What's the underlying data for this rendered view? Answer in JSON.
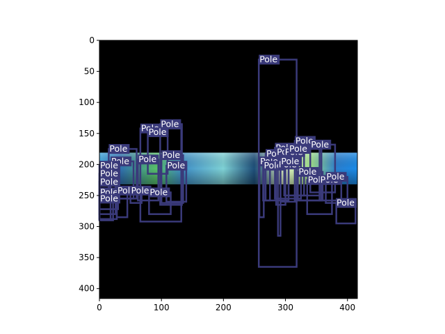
{
  "figure": {
    "label_text": "Pole",
    "colors": {
      "figure_background": "#ffffff",
      "image_background": "#000000",
      "box_stroke": "#3a3a7a",
      "label_background": "#3a3a7a",
      "label_text": "#ffffff",
      "axis": "#000000"
    }
  },
  "chart_data": {
    "type": "image_with_bounding_boxes",
    "xlim": [
      0,
      416
    ],
    "ylim": [
      416,
      0
    ],
    "xticks": [
      0,
      100,
      200,
      300,
      400
    ],
    "yticks": [
      0,
      50,
      100,
      150,
      200,
      250,
      300,
      350,
      400
    ],
    "xtick_labels": [
      "0",
      "100",
      "200",
      "300",
      "400"
    ],
    "ytick_labels": [
      "0",
      "50",
      "100",
      "150",
      "200",
      "250",
      "300",
      "350",
      "400"
    ],
    "image_strip_y_range": [
      181,
      232
    ],
    "boxes": [
      {
        "label": "Pole",
        "x0": 257,
        "y0": 31,
        "x1": 318,
        "y1": 365
      },
      {
        "label": "Pole",
        "x0": 66,
        "y0": 142,
        "x1": 132,
        "y1": 292
      },
      {
        "label": "Pole",
        "x0": 98,
        "y0": 135,
        "x1": 133,
        "y1": 265
      },
      {
        "label": "Pole",
        "x0": 78,
        "y0": 148,
        "x1": 110,
        "y1": 215
      },
      {
        "label": "Pole",
        "x0": 15,
        "y0": 175,
        "x1": 60,
        "y1": 255
      },
      {
        "label": "Pole",
        "x0": 18,
        "y0": 195,
        "x1": 55,
        "y1": 255
      },
      {
        "label": "Pole",
        "x0": 62,
        "y0": 192,
        "x1": 95,
        "y1": 258
      },
      {
        "label": "Pole",
        "x0": 100,
        "y0": 185,
        "x1": 135,
        "y1": 262
      },
      {
        "label": "Pole",
        "x0": 108,
        "y0": 202,
        "x1": 140,
        "y1": 260
      },
      {
        "label": "Pole",
        "x0": 0,
        "y0": 202,
        "x1": 30,
        "y1": 272
      },
      {
        "label": "Pole",
        "x0": 0,
        "y0": 215,
        "x1": 26,
        "y1": 280
      },
      {
        "label": "Pole",
        "x0": 0,
        "y0": 228,
        "x1": 28,
        "y1": 288
      },
      {
        "label": "Pole",
        "x0": 0,
        "y0": 245,
        "x1": 18,
        "y1": 288
      },
      {
        "label": "Pole",
        "x0": 0,
        "y0": 255,
        "x1": 22,
        "y1": 290
      },
      {
        "label": "Pole",
        "x0": 28,
        "y0": 242,
        "x1": 45,
        "y1": 285
      },
      {
        "label": "Pole",
        "x0": 50,
        "y0": 242,
        "x1": 68,
        "y1": 262
      },
      {
        "label": "Pole",
        "x0": 80,
        "y0": 245,
        "x1": 115,
        "y1": 280
      },
      {
        "label": "Pole",
        "x0": 258,
        "y0": 195,
        "x1": 265,
        "y1": 285
      },
      {
        "label": "Pole",
        "x0": 264,
        "y0": 202,
        "x1": 275,
        "y1": 258
      },
      {
        "label": "Pole",
        "x0": 268,
        "y0": 183,
        "x1": 305,
        "y1": 258
      },
      {
        "label": "Pole",
        "x0": 283,
        "y0": 173,
        "x1": 325,
        "y1": 255
      },
      {
        "label": "Pole",
        "x0": 285,
        "y0": 180,
        "x1": 300,
        "y1": 265
      },
      {
        "label": "Pole",
        "x0": 288,
        "y0": 200,
        "x1": 292,
        "y1": 315
      },
      {
        "label": "Pole",
        "x0": 292,
        "y0": 195,
        "x1": 318,
        "y1": 260
      },
      {
        "label": "Pole",
        "x0": 298,
        "y0": 180,
        "x1": 330,
        "y1": 250
      },
      {
        "label": "Pole",
        "x0": 305,
        "y0": 175,
        "x1": 355,
        "y1": 250
      },
      {
        "label": "Pole",
        "x0": 315,
        "y0": 162,
        "x1": 358,
        "y1": 258
      },
      {
        "label": "Pole",
        "x0": 320,
        "y0": 212,
        "x1": 360,
        "y1": 258
      },
      {
        "label": "Pole",
        "x0": 340,
        "y0": 168,
        "x1": 380,
        "y1": 245
      },
      {
        "label": "Pole",
        "x0": 335,
        "y0": 225,
        "x1": 375,
        "y1": 280
      },
      {
        "label": "Pole",
        "x0": 355,
        "y0": 225,
        "x1": 390,
        "y1": 258
      },
      {
        "label": "Pole",
        "x0": 365,
        "y0": 220,
        "x1": 400,
        "y1": 262
      },
      {
        "label": "Pole",
        "x0": 382,
        "y0": 262,
        "x1": 413,
        "y1": 295
      }
    ]
  }
}
